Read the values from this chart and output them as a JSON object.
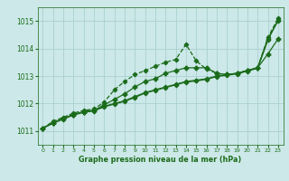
{
  "title": "Graphe pression niveau de la mer (hPa)",
  "bg_color": "#cce8e8",
  "grid_color": "#aad0d0",
  "line_color": "#1a6b1a",
  "x_ticks": [
    0,
    1,
    2,
    3,
    4,
    5,
    6,
    7,
    8,
    9,
    10,
    11,
    12,
    13,
    14,
    15,
    16,
    17,
    18,
    19,
    20,
    21,
    22,
    23
  ],
  "y_ticks": [
    1011,
    1012,
    1013,
    1014,
    1015
  ],
  "ylim": [
    1010.5,
    1015.5
  ],
  "xlim": [
    -0.5,
    23.5
  ],
  "series": [
    {
      "x": [
        0,
        1,
        2,
        3,
        4,
        5,
        6,
        7,
        8,
        9,
        10,
        11,
        12,
        13,
        14,
        15,
        16,
        17,
        18,
        19,
        20,
        21,
        22,
        23
      ],
      "y": [
        1011.1,
        1011.35,
        1011.5,
        1011.65,
        1011.75,
        1011.8,
        1012.05,
        1012.5,
        1012.8,
        1013.05,
        1013.2,
        1013.35,
        1013.5,
        1013.6,
        1014.15,
        1013.55,
        1013.25,
        1013.1,
        1013.05,
        1013.1,
        1013.2,
        1013.3,
        1014.4,
        1015.1
      ],
      "marker": "D",
      "ms": 2.5,
      "lw": 0.9,
      "ls": "--"
    },
    {
      "x": [
        0,
        1,
        2,
        3,
        4,
        5,
        6,
        7,
        8,
        9,
        10,
        11,
        12,
        13,
        14,
        15,
        16,
        17,
        18,
        19,
        20,
        21,
        22,
        23
      ],
      "y": [
        1011.1,
        1011.3,
        1011.45,
        1011.6,
        1011.7,
        1011.75,
        1011.9,
        1012.0,
        1012.1,
        1012.25,
        1012.4,
        1012.5,
        1012.6,
        1012.7,
        1012.8,
        1012.85,
        1012.9,
        1013.0,
        1013.05,
        1013.1,
        1013.2,
        1013.3,
        1014.35,
        1015.0
      ],
      "marker": "D",
      "ms": 2.5,
      "lw": 0.9,
      "ls": "-"
    },
    {
      "x": [
        0,
        1,
        2,
        3,
        4,
        5,
        6,
        7,
        8,
        9,
        10,
        11,
        12,
        13,
        14,
        15,
        16,
        17,
        18,
        19,
        20,
        21,
        22,
        23
      ],
      "y": [
        1011.1,
        1011.28,
        1011.43,
        1011.58,
        1011.68,
        1011.73,
        1011.88,
        1011.98,
        1012.08,
        1012.22,
        1012.38,
        1012.48,
        1012.58,
        1012.68,
        1012.78,
        1012.82,
        1012.88,
        1012.98,
        1013.03,
        1013.08,
        1013.18,
        1013.28,
        1014.3,
        1015.05
      ],
      "marker": "D",
      "ms": 2.5,
      "lw": 0.9,
      "ls": "-"
    },
    {
      "x": [
        0,
        1,
        2,
        3,
        4,
        5,
        6,
        7,
        8,
        9,
        10,
        11,
        12,
        13,
        14,
        15,
        16,
        17,
        18,
        19,
        20,
        21,
        22,
        23
      ],
      "y": [
        1011.1,
        1011.3,
        1011.45,
        1011.6,
        1011.7,
        1011.75,
        1011.95,
        1012.15,
        1012.35,
        1012.6,
        1012.8,
        1012.9,
        1013.1,
        1013.2,
        1013.3,
        1013.3,
        1013.3,
        1013.1,
        1013.05,
        1013.1,
        1013.2,
        1013.3,
        1013.8,
        1014.35
      ],
      "marker": "P",
      "ms": 3.5,
      "lw": 0.9,
      "ls": "-"
    }
  ]
}
